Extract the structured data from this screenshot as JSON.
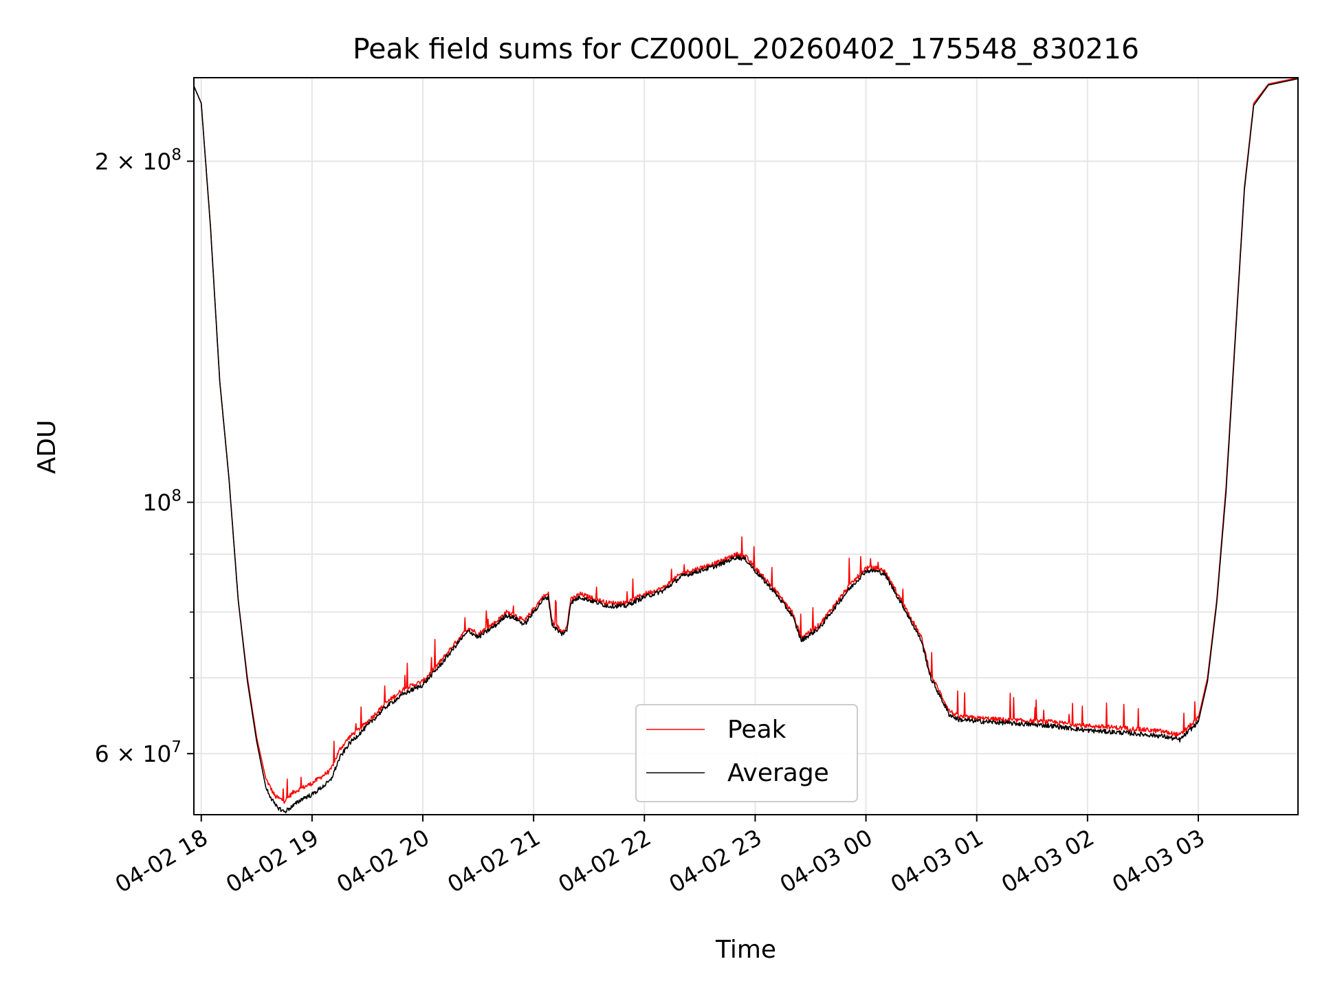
{
  "chart_data": {
    "type": "line",
    "title": "Peak field sums for CZ000L_20260402_175548_830216",
    "xlabel": "Time",
    "ylabel": "ADU",
    "yscale": "log",
    "ylim": [
      53000000,
      237000000
    ],
    "xlim": [
      "2026-04-02 17:56",
      "2026-04-03 03:54"
    ],
    "grid": true,
    "legend_position": "lower-center",
    "x_ticks": [
      {
        "t": "2026-04-02 18:00",
        "label": "04-02 18"
      },
      {
        "t": "2026-04-02 19:00",
        "label": "04-02 19"
      },
      {
        "t": "2026-04-02 20:00",
        "label": "04-02 20"
      },
      {
        "t": "2026-04-02 21:00",
        "label": "04-02 21"
      },
      {
        "t": "2026-04-02 22:00",
        "label": "04-02 22"
      },
      {
        "t": "2026-04-02 23:00",
        "label": "04-02 23"
      },
      {
        "t": "2026-04-03 00:00",
        "label": "04-03 00"
      },
      {
        "t": "2026-04-03 01:00",
        "label": "04-03 01"
      },
      {
        "t": "2026-04-03 02:00",
        "label": "04-03 02"
      },
      {
        "t": "2026-04-03 03:00",
        "label": "04-03 03"
      }
    ],
    "y_major_ticks": [
      {
        "value": 200000000,
        "mant": "2",
        "exp": "8",
        "times": "×"
      },
      {
        "value": 100000000,
        "mant": "",
        "exp": "8",
        "times": ""
      },
      {
        "value": 60000000,
        "mant": "6",
        "exp": "7",
        "times": "×"
      }
    ],
    "y_minor_ticks": [
      70000000,
      80000000,
      90000000
    ],
    "series": [
      {
        "name": "Peak",
        "color": "#ff0000",
        "points": [
          [
            "2026-04-02 17:56",
            233000000
          ],
          [
            "2026-04-02 18:00",
            225000000
          ],
          [
            "2026-04-02 18:05",
            175000000
          ],
          [
            "2026-04-02 18:10",
            128000000
          ],
          [
            "2026-04-02 18:15",
            105000000
          ],
          [
            "2026-04-02 18:20",
            82000000
          ],
          [
            "2026-04-02 18:25",
            70000000
          ],
          [
            "2026-04-02 18:30",
            62000000
          ],
          [
            "2026-04-02 18:35",
            57000000
          ],
          [
            "2026-04-02 18:40",
            55000000
          ],
          [
            "2026-04-02 18:45",
            54500000
          ],
          [
            "2026-04-02 18:50",
            55500000
          ],
          [
            "2026-04-02 18:55",
            56000000
          ],
          [
            "2026-04-02 19:00",
            56500000
          ],
          [
            "2026-04-02 19:10",
            58000000
          ],
          [
            "2026-04-02 19:15",
            60500000
          ],
          [
            "2026-04-02 19:20",
            62000000
          ],
          [
            "2026-04-02 19:30",
            64000000
          ],
          [
            "2026-04-02 19:40",
            66500000
          ],
          [
            "2026-04-02 19:50",
            68500000
          ],
          [
            "2026-04-02 20:00",
            69500000
          ],
          [
            "2026-04-02 20:10",
            72500000
          ],
          [
            "2026-04-02 20:20",
            76000000
          ],
          [
            "2026-04-02 20:25",
            77500000
          ],
          [
            "2026-04-02 20:30",
            76500000
          ],
          [
            "2026-04-02 20:40",
            78500000
          ],
          [
            "2026-04-02 20:45",
            80000000
          ],
          [
            "2026-04-02 20:50",
            79500000
          ],
          [
            "2026-04-02 20:55",
            78500000
          ],
          [
            "2026-04-02 21:00",
            80500000
          ],
          [
            "2026-04-02 21:05",
            82500000
          ],
          [
            "2026-04-02 21:08",
            83000000
          ],
          [
            "2026-04-02 21:10",
            78500000
          ],
          [
            "2026-04-02 21:15",
            77000000
          ],
          [
            "2026-04-02 21:18",
            77500000
          ],
          [
            "2026-04-02 21:20",
            82000000
          ],
          [
            "2026-04-02 21:25",
            83000000
          ],
          [
            "2026-04-02 21:30",
            82500000
          ],
          [
            "2026-04-02 21:40",
            81500000
          ],
          [
            "2026-04-02 21:50",
            81500000
          ],
          [
            "2026-04-02 22:00",
            83000000
          ],
          [
            "2026-04-02 22:10",
            84000000
          ],
          [
            "2026-04-02 22:20",
            86500000
          ],
          [
            "2026-04-02 22:30",
            87500000
          ],
          [
            "2026-04-02 22:40",
            88500000
          ],
          [
            "2026-04-02 22:50",
            90000000
          ],
          [
            "2026-04-02 22:55",
            89500000
          ],
          [
            "2026-04-02 23:00",
            87500000
          ],
          [
            "2026-04-02 23:10",
            84000000
          ],
          [
            "2026-04-02 23:20",
            80000000
          ],
          [
            "2026-04-02 23:25",
            76000000
          ],
          [
            "2026-04-02 23:30",
            77000000
          ],
          [
            "2026-04-02 23:35",
            78000000
          ],
          [
            "2026-04-02 23:40",
            80000000
          ],
          [
            "2026-04-02 23:50",
            84000000
          ],
          [
            "2026-04-03 00:00",
            87500000
          ],
          [
            "2026-04-03 00:05",
            87500000
          ],
          [
            "2026-04-03 00:10",
            87000000
          ],
          [
            "2026-04-03 00:20",
            81500000
          ],
          [
            "2026-04-03 00:30",
            76000000
          ],
          [
            "2026-04-03 00:35",
            70500000
          ],
          [
            "2026-04-03 00:40",
            68000000
          ],
          [
            "2026-04-03 00:45",
            65500000
          ],
          [
            "2026-04-03 00:50",
            64700000
          ],
          [
            "2026-04-03 01:00",
            64500000
          ],
          [
            "2026-04-03 01:20",
            64200000
          ],
          [
            "2026-04-03 01:40",
            64000000
          ],
          [
            "2026-04-03 02:00",
            63500000
          ],
          [
            "2026-04-03 02:20",
            63200000
          ],
          [
            "2026-04-03 02:40",
            62800000
          ],
          [
            "2026-04-03 02:50",
            62300000
          ],
          [
            "2026-04-03 03:00",
            64500000
          ],
          [
            "2026-04-03 03:05",
            70000000
          ],
          [
            "2026-04-03 03:10",
            82000000
          ],
          [
            "2026-04-03 03:15",
            103000000
          ],
          [
            "2026-04-03 03:20",
            140000000
          ],
          [
            "2026-04-03 03:25",
            190000000
          ],
          [
            "2026-04-03 03:30",
            225000000
          ],
          [
            "2026-04-03 03:38",
            234000000
          ],
          [
            "2026-04-03 03:54",
            237000000
          ]
        ]
      },
      {
        "name": "Average",
        "color": "#000000",
        "points": [
          [
            "2026-04-02 17:56",
            233000000
          ],
          [
            "2026-04-02 18:00",
            225000000
          ],
          [
            "2026-04-02 18:05",
            175000000
          ],
          [
            "2026-04-02 18:10",
            128000000
          ],
          [
            "2026-04-02 18:15",
            105000000
          ],
          [
            "2026-04-02 18:20",
            82000000
          ],
          [
            "2026-04-02 18:25",
            69500000
          ],
          [
            "2026-04-02 18:30",
            61500000
          ],
          [
            "2026-04-02 18:35",
            56000000
          ],
          [
            "2026-04-02 18:40",
            54000000
          ],
          [
            "2026-04-02 18:45",
            53300000
          ],
          [
            "2026-04-02 18:50",
            54000000
          ],
          [
            "2026-04-02 18:55",
            54800000
          ],
          [
            "2026-04-02 19:00",
            55200000
          ],
          [
            "2026-04-02 19:10",
            56800000
          ],
          [
            "2026-04-02 19:15",
            59500000
          ],
          [
            "2026-04-02 19:20",
            61200000
          ],
          [
            "2026-04-02 19:30",
            63500000
          ],
          [
            "2026-04-02 19:40",
            66000000
          ],
          [
            "2026-04-02 19:50",
            67800000
          ],
          [
            "2026-04-02 20:00",
            69000000
          ],
          [
            "2026-04-02 20:10",
            72000000
          ],
          [
            "2026-04-02 20:20",
            75500000
          ],
          [
            "2026-04-02 20:25",
            77000000
          ],
          [
            "2026-04-02 20:30",
            76000000
          ],
          [
            "2026-04-02 20:40",
            78000000
          ],
          [
            "2026-04-02 20:45",
            79500000
          ],
          [
            "2026-04-02 20:50",
            79000000
          ],
          [
            "2026-04-02 20:55",
            78000000
          ],
          [
            "2026-04-02 21:00",
            80000000
          ],
          [
            "2026-04-02 21:05",
            82000000
          ],
          [
            "2026-04-02 21:08",
            82500000
          ],
          [
            "2026-04-02 21:10",
            78000000
          ],
          [
            "2026-04-02 21:15",
            76500000
          ],
          [
            "2026-04-02 21:18",
            77000000
          ],
          [
            "2026-04-02 21:20",
            81500000
          ],
          [
            "2026-04-02 21:25",
            82500000
          ],
          [
            "2026-04-02 21:30",
            82000000
          ],
          [
            "2026-04-02 21:40",
            81000000
          ],
          [
            "2026-04-02 21:50",
            81000000
          ],
          [
            "2026-04-02 22:00",
            82500000
          ],
          [
            "2026-04-02 22:10",
            83500000
          ],
          [
            "2026-04-02 22:20",
            86000000
          ],
          [
            "2026-04-02 22:30",
            87000000
          ],
          [
            "2026-04-02 22:40",
            88000000
          ],
          [
            "2026-04-02 22:50",
            89500000
          ],
          [
            "2026-04-02 22:55",
            89000000
          ],
          [
            "2026-04-02 23:00",
            87000000
          ],
          [
            "2026-04-02 23:10",
            83500000
          ],
          [
            "2026-04-02 23:20",
            79500000
          ],
          [
            "2026-04-02 23:25",
            75500000
          ],
          [
            "2026-04-02 23:30",
            76500000
          ],
          [
            "2026-04-02 23:35",
            77500000
          ],
          [
            "2026-04-02 23:40",
            79500000
          ],
          [
            "2026-04-02 23:50",
            83500000
          ],
          [
            "2026-04-03 00:00",
            87000000
          ],
          [
            "2026-04-03 00:05",
            87000000
          ],
          [
            "2026-04-03 00:10",
            86500000
          ],
          [
            "2026-04-03 00:20",
            81000000
          ],
          [
            "2026-04-03 00:30",
            75500000
          ],
          [
            "2026-04-03 00:35",
            70000000
          ],
          [
            "2026-04-03 00:40",
            67500000
          ],
          [
            "2026-04-03 00:45",
            65000000
          ],
          [
            "2026-04-03 00:50",
            64300000
          ],
          [
            "2026-04-03 01:00",
            64100000
          ],
          [
            "2026-04-03 01:20",
            63800000
          ],
          [
            "2026-04-03 01:40",
            63500000
          ],
          [
            "2026-04-03 02:00",
            62900000
          ],
          [
            "2026-04-03 02:20",
            62600000
          ],
          [
            "2026-04-03 02:40",
            62200000
          ],
          [
            "2026-04-03 02:50",
            61700000
          ],
          [
            "2026-04-03 03:00",
            64000000
          ],
          [
            "2026-04-03 03:05",
            69500000
          ],
          [
            "2026-04-03 03:10",
            81500000
          ],
          [
            "2026-04-03 03:15",
            102000000
          ],
          [
            "2026-04-03 03:20",
            139000000
          ],
          [
            "2026-04-03 03:25",
            189000000
          ],
          [
            "2026-04-03 03:30",
            224000000
          ],
          [
            "2026-04-03 03:38",
            233500000
          ],
          [
            "2026-04-03 03:54",
            236500000
          ]
        ]
      }
    ]
  }
}
